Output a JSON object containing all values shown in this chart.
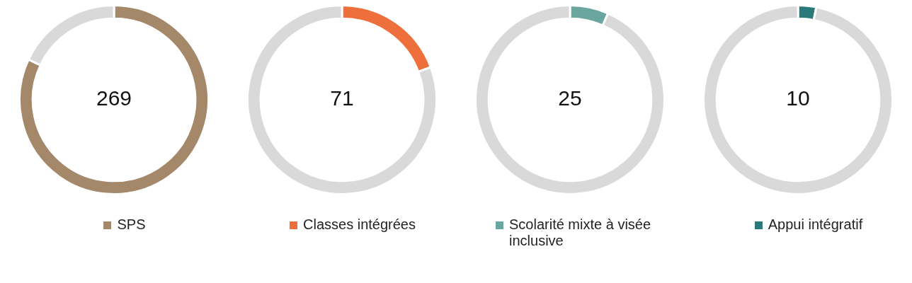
{
  "chart_data": [
    {
      "type": "donut",
      "categories": [
        "SPS",
        null
      ],
      "values": [
        269,
        59
      ],
      "value_labels": [
        "269",
        null
      ],
      "colors": [
        "#a5876a",
        "#d9d9d9"
      ],
      "legend": "bottom"
    },
    {
      "type": "donut",
      "categories": [
        "Classes intégrées",
        null
      ],
      "values": [
        71,
        295
      ],
      "value_labels": [
        "71",
        null
      ],
      "colors": [
        "#ee6f3c",
        "#d9d9d9"
      ],
      "legend": "bottom"
    },
    {
      "type": "donut",
      "categories": [
        "Scolarité mixte à visée inclusive",
        null
      ],
      "values": [
        25,
        354
      ],
      "value_labels": [
        "25",
        null
      ],
      "colors": [
        "#6aa6a0",
        "#d9d9d9"
      ],
      "legend": "bottom"
    },
    {
      "type": "donut",
      "categories": [
        "Appui intégratif",
        null
      ],
      "values": [
        10,
        312
      ],
      "value_labels": [
        "10",
        null
      ],
      "colors": [
        "#2a7a7c",
        "#d9d9d9"
      ],
      "legend": "bottom"
    }
  ]
}
